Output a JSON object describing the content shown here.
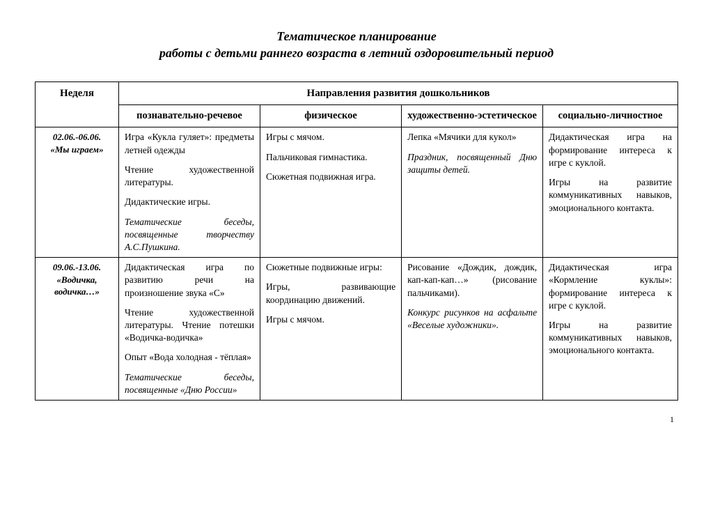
{
  "title": {
    "line1": "Тематическое планирование",
    "line2": "работы с детьми раннего возраста в летний оздоровительный период"
  },
  "headers": {
    "week": "Неделя",
    "main": "Направления развития дошкольников",
    "col1": "познавательно-речевое",
    "col2": "физическое",
    "col3": "художественно-эстетическое",
    "col4": "социально-личностное"
  },
  "rows": [
    {
      "week_date": "02.06.-06.06.",
      "week_name": "«Мы играем»",
      "col1": {
        "p1": "Игра «Кукла гуляет»: предметы летней одежды",
        "p2": "Чтение художественной литературы.",
        "p3": "Дидактические игры.",
        "p4_italic": "Тематические беседы, посвященные творчеству А.С.Пушкина."
      },
      "col2": {
        "p1": "Игры с мячом.",
        "p2": "Пальчиковая гимнастика.",
        "p3": "Сюжетная подвижная игра."
      },
      "col3": {
        "p1": " Лепка «Мячики для кукол»",
        "p2_italic": "Праздник, посвященный Дню защиты детей."
      },
      "col4": {
        "p1": "Дидактическая игра на формирование интереса к игре с куклой.",
        "p2": "Игры на развитие коммуникативных навыков, эмоционального контакта."
      }
    },
    {
      "week_date": "09.06.-13.06.",
      "week_name": "«Водичка, водичка…»",
      "col1": {
        "p1": "Дидактическая игра по развитию речи на произношение звука «С»",
        "p2": "Чтение художественной литературы. Чтение потешки «Водичка-водичка»",
        "p3": "Опыт «Вода холодная - тёплая»",
        "p4_italic": " Тематические беседы, посвященные «Дню России»"
      },
      "col2": {
        "p1": "Сюжетные подвижные игры:",
        "p2": "Игры, развивающие координацию движений.",
        "p3": "Игры с мячом."
      },
      "col3": {
        "p1": "Рисование «Дождик, дождик, кап-кап-кап…» (рисование пальчиками).",
        "p2_italic": "Конкурс рисунков на асфальте «Веселые художники»."
      },
      "col4": {
        "p1": "Дидактическая игра «Кормление куклы»: формирование интереса к игре с куклой.",
        "p2": "Игры на развитие коммуникативных навыков, эмоционального контакта."
      }
    }
  ],
  "page_number": "1"
}
